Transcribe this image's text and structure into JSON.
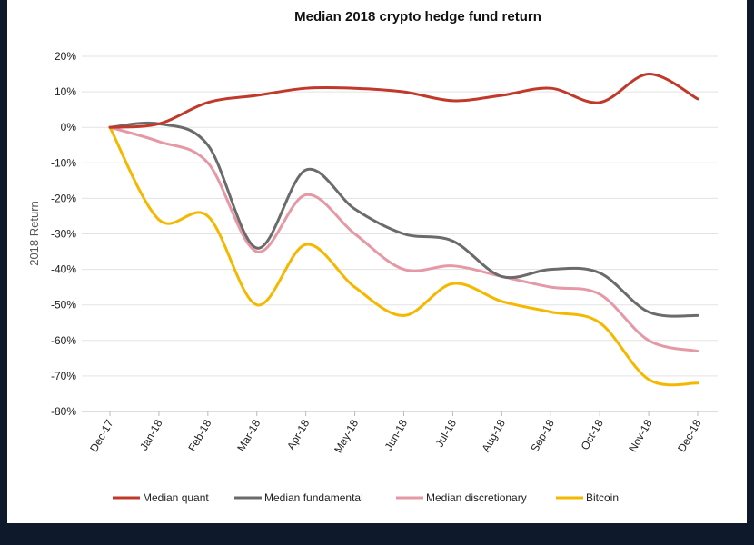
{
  "chart_data": {
    "type": "line",
    "title": "Median 2018 crypto hedge fund return",
    "xlabel": "",
    "ylabel": "2018 Return",
    "categories": [
      "Dec-17",
      "Jan-18",
      "Feb-18",
      "Mar-18",
      "Apr-18",
      "May-18",
      "Jun-18",
      "Jul-18",
      "Aug-18",
      "Sep-18",
      "Oct-18",
      "Nov-18",
      "Dec-18"
    ],
    "ylim": [
      -80,
      20
    ],
    "yticks": [
      20,
      10,
      0,
      -10,
      -20,
      -30,
      -40,
      -50,
      -60,
      -70,
      -80
    ],
    "ytick_labels": [
      "20%",
      "10%",
      "0%",
      "-10%",
      "-20%",
      "-30%",
      "-40%",
      "-50%",
      "-60%",
      "-70%",
      "-80%"
    ],
    "grid": true,
    "legend_position": "bottom",
    "series": [
      {
        "name": "Median quant",
        "color": "#c0392b",
        "values": [
          0,
          1,
          7,
          9,
          11,
          11,
          10,
          7.5,
          9,
          11,
          7,
          15,
          8
        ]
      },
      {
        "name": "Median fundamental",
        "color": "#6b6b6b",
        "values": [
          0,
          1,
          -5,
          -34,
          -12,
          -23,
          -30,
          -32,
          -42,
          -40,
          -41,
          -52,
          -53
        ]
      },
      {
        "name": "Median discretionary",
        "color": "#e599a6",
        "values": [
          0,
          -4,
          -10,
          -35,
          -19,
          -30,
          -40,
          -39,
          -42,
          -45,
          -47,
          -60,
          -63
        ]
      },
      {
        "name": "Bitcoin",
        "color": "#f5b800",
        "values": [
          0,
          -26,
          -25,
          -50,
          -33,
          -45,
          -53,
          -44,
          -49,
          -52,
          -55,
          -71,
          -72
        ]
      }
    ]
  }
}
